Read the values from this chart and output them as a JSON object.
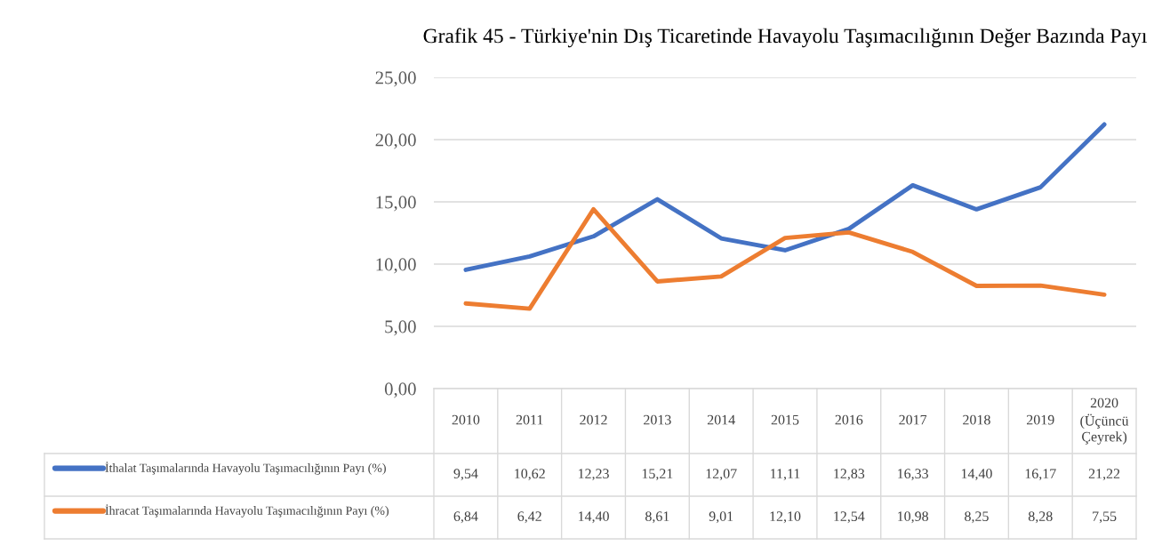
{
  "chart_data": {
    "type": "line",
    "title": "Grafik 45 - Türkiye'nin Dış Ticaretinde Havayolu Taşımacılığının Değer Bazında Payı",
    "categories": [
      "2010",
      "2011",
      "2012",
      "2013",
      "2014",
      "2015",
      "2016",
      "2017",
      "2018",
      "2019",
      "2020\n(Üçüncü\nÇeyrek)"
    ],
    "series": [
      {
        "name": "İthalat Taşımalarında Havayolu Taşımacılığının Payı (%)",
        "color": "#4472c4",
        "values": [
          9.54,
          10.62,
          12.23,
          15.21,
          12.07,
          11.11,
          12.83,
          16.33,
          14.4,
          16.17,
          21.22
        ],
        "value_labels": [
          "9,54",
          "10,62",
          "12,23",
          "15,21",
          "12,07",
          "11,11",
          "12,83",
          "16,33",
          "14,40",
          "16,17",
          "21,22"
        ]
      },
      {
        "name": "İhracat Taşımalarında Havayolu Taşımacılığının Payı (%)",
        "color": "#ed7d31",
        "values": [
          6.84,
          6.42,
          14.4,
          8.61,
          9.01,
          12.1,
          12.54,
          10.98,
          8.25,
          8.28,
          7.55
        ],
        "value_labels": [
          "6,84",
          "6,42",
          "14,40",
          "8,61",
          "9,01",
          "12,10",
          "12,54",
          "10,98",
          "8,25",
          "8,28",
          "7,55"
        ]
      }
    ],
    "ylim": [
      0,
      25
    ],
    "yticks": [
      {
        "value": 0,
        "label": "0,00"
      },
      {
        "value": 5,
        "label": "5,00"
      },
      {
        "value": 10,
        "label": "10,00"
      },
      {
        "value": 15,
        "label": "15,00"
      },
      {
        "value": 20,
        "label": "20,00"
      },
      {
        "value": 25,
        "label": "25,00"
      }
    ],
    "grid": "y",
    "legend": "bottom",
    "marker": "none",
    "line_style": "solid"
  }
}
